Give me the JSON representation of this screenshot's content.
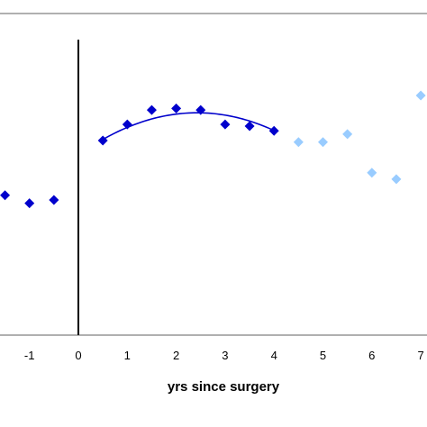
{
  "chart_data": {
    "type": "scatter",
    "title": "",
    "xlabel": "yrs since surgery",
    "ylabel": "",
    "xlim": [
      -1.6,
      7.1
    ],
    "ylim": [
      0,
      100
    ],
    "x_ticks": [
      -1,
      0,
      1,
      2,
      3,
      4,
      5,
      6,
      7
    ],
    "x_tick_labels": [
      "-1",
      "0",
      "1",
      "2",
      "3",
      "4",
      "5",
      "6",
      "7"
    ],
    "grid": false,
    "reference_lines": [
      {
        "axis": "x",
        "value": 0
      }
    ],
    "series": [
      {
        "color": "#0000CC",
        "marker": "diamond",
        "x": [
          -1.5,
          -1.0,
          -0.5
        ],
        "y": [
          43.5,
          41,
          42
        ]
      },
      {
        "color": "#0000CC",
        "marker": "diamond",
        "x": [
          0.5,
          1.0,
          1.5,
          2.0,
          2.5,
          3.0,
          3.5,
          4.0
        ],
        "y": [
          60.5,
          65.5,
          70,
          70.5,
          70,
          65.5,
          65,
          63.5
        ]
      },
      {
        "color": "#99CCFF",
        "marker": "diamond",
        "x": [
          4.5,
          5.0,
          5.5,
          6.0,
          6.5,
          7.0
        ],
        "y": [
          60,
          60,
          62.5,
          50.5,
          48.5,
          74.5
        ]
      }
    ],
    "trendline": {
      "color": "#0000CC",
      "type": "polynomial",
      "x_range": [
        0.5,
        4.0
      ],
      "points": {
        "x": [
          0.5,
          1.0,
          1.5,
          2.0,
          2.5,
          3.0,
          3.5,
          4.0
        ],
        "y": [
          60.5,
          64.8,
          67.6,
          68.9,
          69.0,
          68.0,
          66.3,
          64.0
        ]
      }
    }
  }
}
